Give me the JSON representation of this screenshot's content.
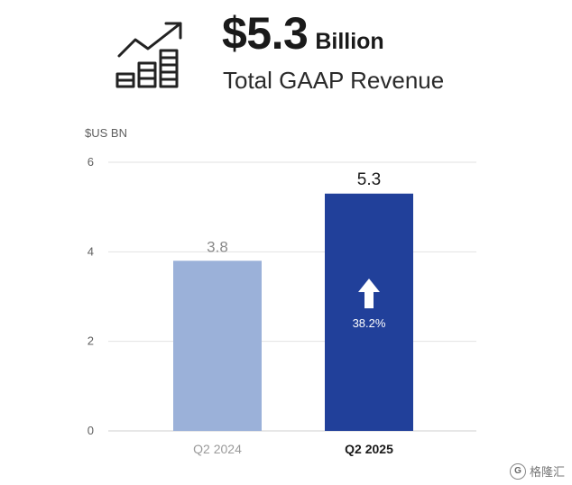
{
  "header": {
    "headline_value": "$5.3",
    "headline_unit": "Billion",
    "headline_sub": "Total GAAP Revenue",
    "icon": "growth-bars-icon"
  },
  "watermark": {
    "badge": "G",
    "text": "格隆汇"
  },
  "colors": {
    "bar_2024": "#9bb1d9",
    "bar_2025": "#21409a",
    "gridline": "#e2e2e2",
    "axis_text": "#5f5f5f"
  },
  "chart_data": {
    "type": "bar",
    "title": "",
    "ylabel": "$US BN",
    "xlabel": "",
    "categories": [
      "Q2 2024",
      "Q2 2025"
    ],
    "values": [
      3.8,
      5.3
    ],
    "value_labels": [
      "3.8",
      "5.3"
    ],
    "ylim": [
      0,
      6
    ],
    "yticks": [
      0,
      2,
      4,
      6
    ],
    "grid": true,
    "legend": "none",
    "annotation": {
      "category": "Q2 2025",
      "text": "38.2%",
      "icon": "up-arrow-icon"
    }
  }
}
